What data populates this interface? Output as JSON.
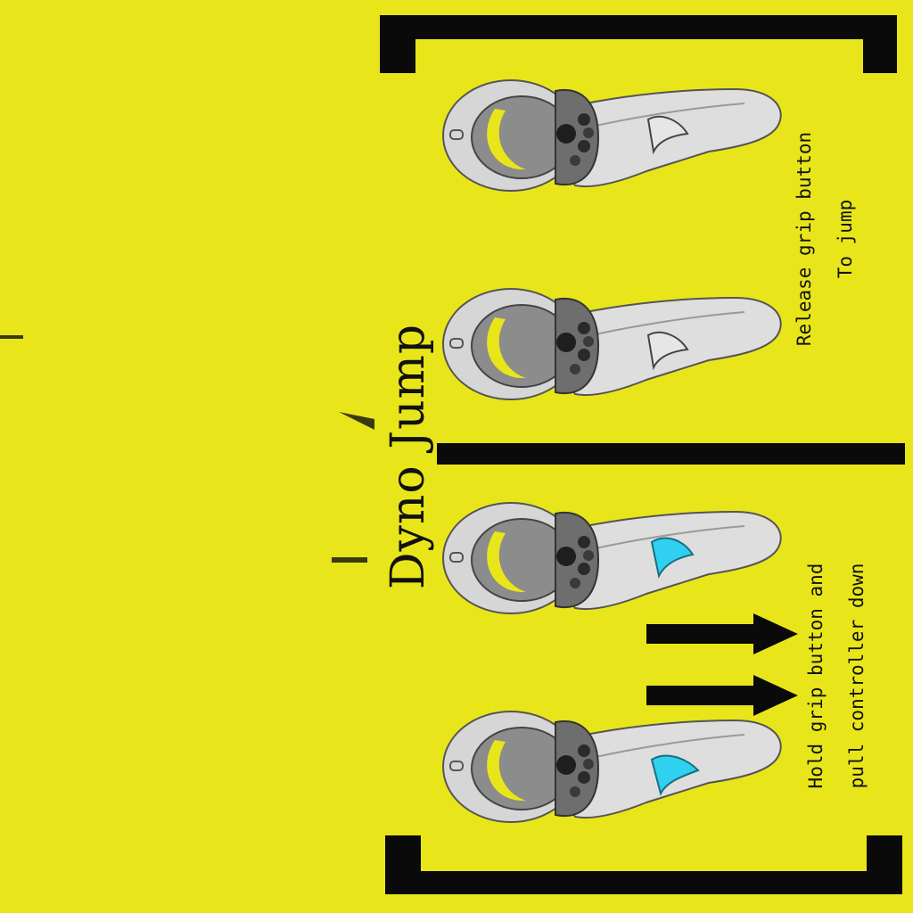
{
  "title": "Dyno Jump",
  "captions": {
    "release": {
      "line1": "Release grip button",
      "line2": "To jump"
    },
    "hold": {
      "line1": "Hold grip button and",
      "line2": "pull controller down"
    }
  },
  "colors": {
    "background": "#e8e61a",
    "bracket": "#0a0a0a",
    "grip_pressed": "#2fd0f0",
    "controller_body": "#dcdcdc",
    "controller_face": "#7a7a7a"
  },
  "icons": [
    "vr-controller-icon",
    "arrow-right-icon",
    "bracket"
  ]
}
